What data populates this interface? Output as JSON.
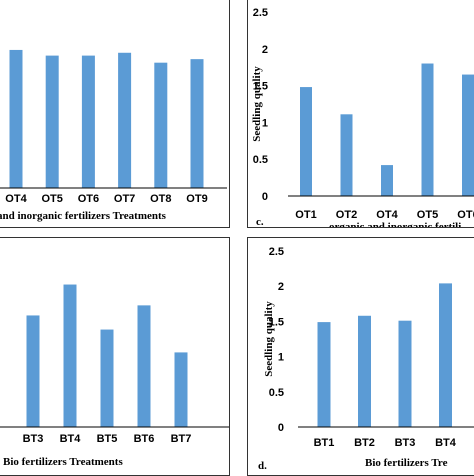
{
  "colors": {
    "bar": "#5b9bd5",
    "axis": "#000000",
    "border": "#333333"
  },
  "chart_data": [
    {
      "id": "a",
      "type": "bar",
      "panel_label": "",
      "categories": [
        "OT4",
        "OT5",
        "OT6",
        "OT7",
        "OT8",
        "OT9"
      ],
      "values": [
        1.95,
        1.87,
        1.87,
        1.91,
        1.77,
        1.82
      ],
      "xlabel": "and inorganic fertilizers Treatments",
      "ylabel": "",
      "ylim": [
        0,
        2.5
      ],
      "yticks": [],
      "grid": false
    },
    {
      "id": "c",
      "type": "bar",
      "panel_label": "c.",
      "categories": [
        "OT1",
        "OT2",
        "OT4",
        "OT5",
        "OT6"
      ],
      "values": [
        1.48,
        1.11,
        0.42,
        1.8,
        1.65
      ],
      "xlabel": "organic and inorganic fertili",
      "ylabel": "Seedling quality",
      "ylim": [
        0,
        2.5
      ],
      "yticks": [
        "0",
        "0.5",
        "1",
        "1.5",
        "2",
        "2.5"
      ],
      "grid": false
    },
    {
      "id": "b",
      "type": "bar",
      "panel_label": "",
      "categories": [
        "BT3",
        "BT4",
        "BT5",
        "BT6",
        "BT7"
      ],
      "values": [
        1.66,
        2.12,
        1.45,
        1.81,
        1.11
      ],
      "xlabel": "Bio fertilizers Treatments",
      "ylabel": "",
      "ylim": [
        0,
        2.5
      ],
      "yticks": [],
      "grid": false
    },
    {
      "id": "d",
      "type": "bar",
      "panel_label": "d.",
      "categories": [
        "BT1",
        "BT2",
        "BT3",
        "BT4"
      ],
      "values": [
        1.49,
        1.58,
        1.51,
        2.04
      ],
      "xlabel": "Bio fertilizers Tre",
      "ylabel": "Seedling quality",
      "ylim": [
        0,
        2.5
      ],
      "yticks": [
        "0",
        "0.5",
        "1",
        "1.5",
        "2",
        "2.5"
      ],
      "grid": false
    }
  ]
}
